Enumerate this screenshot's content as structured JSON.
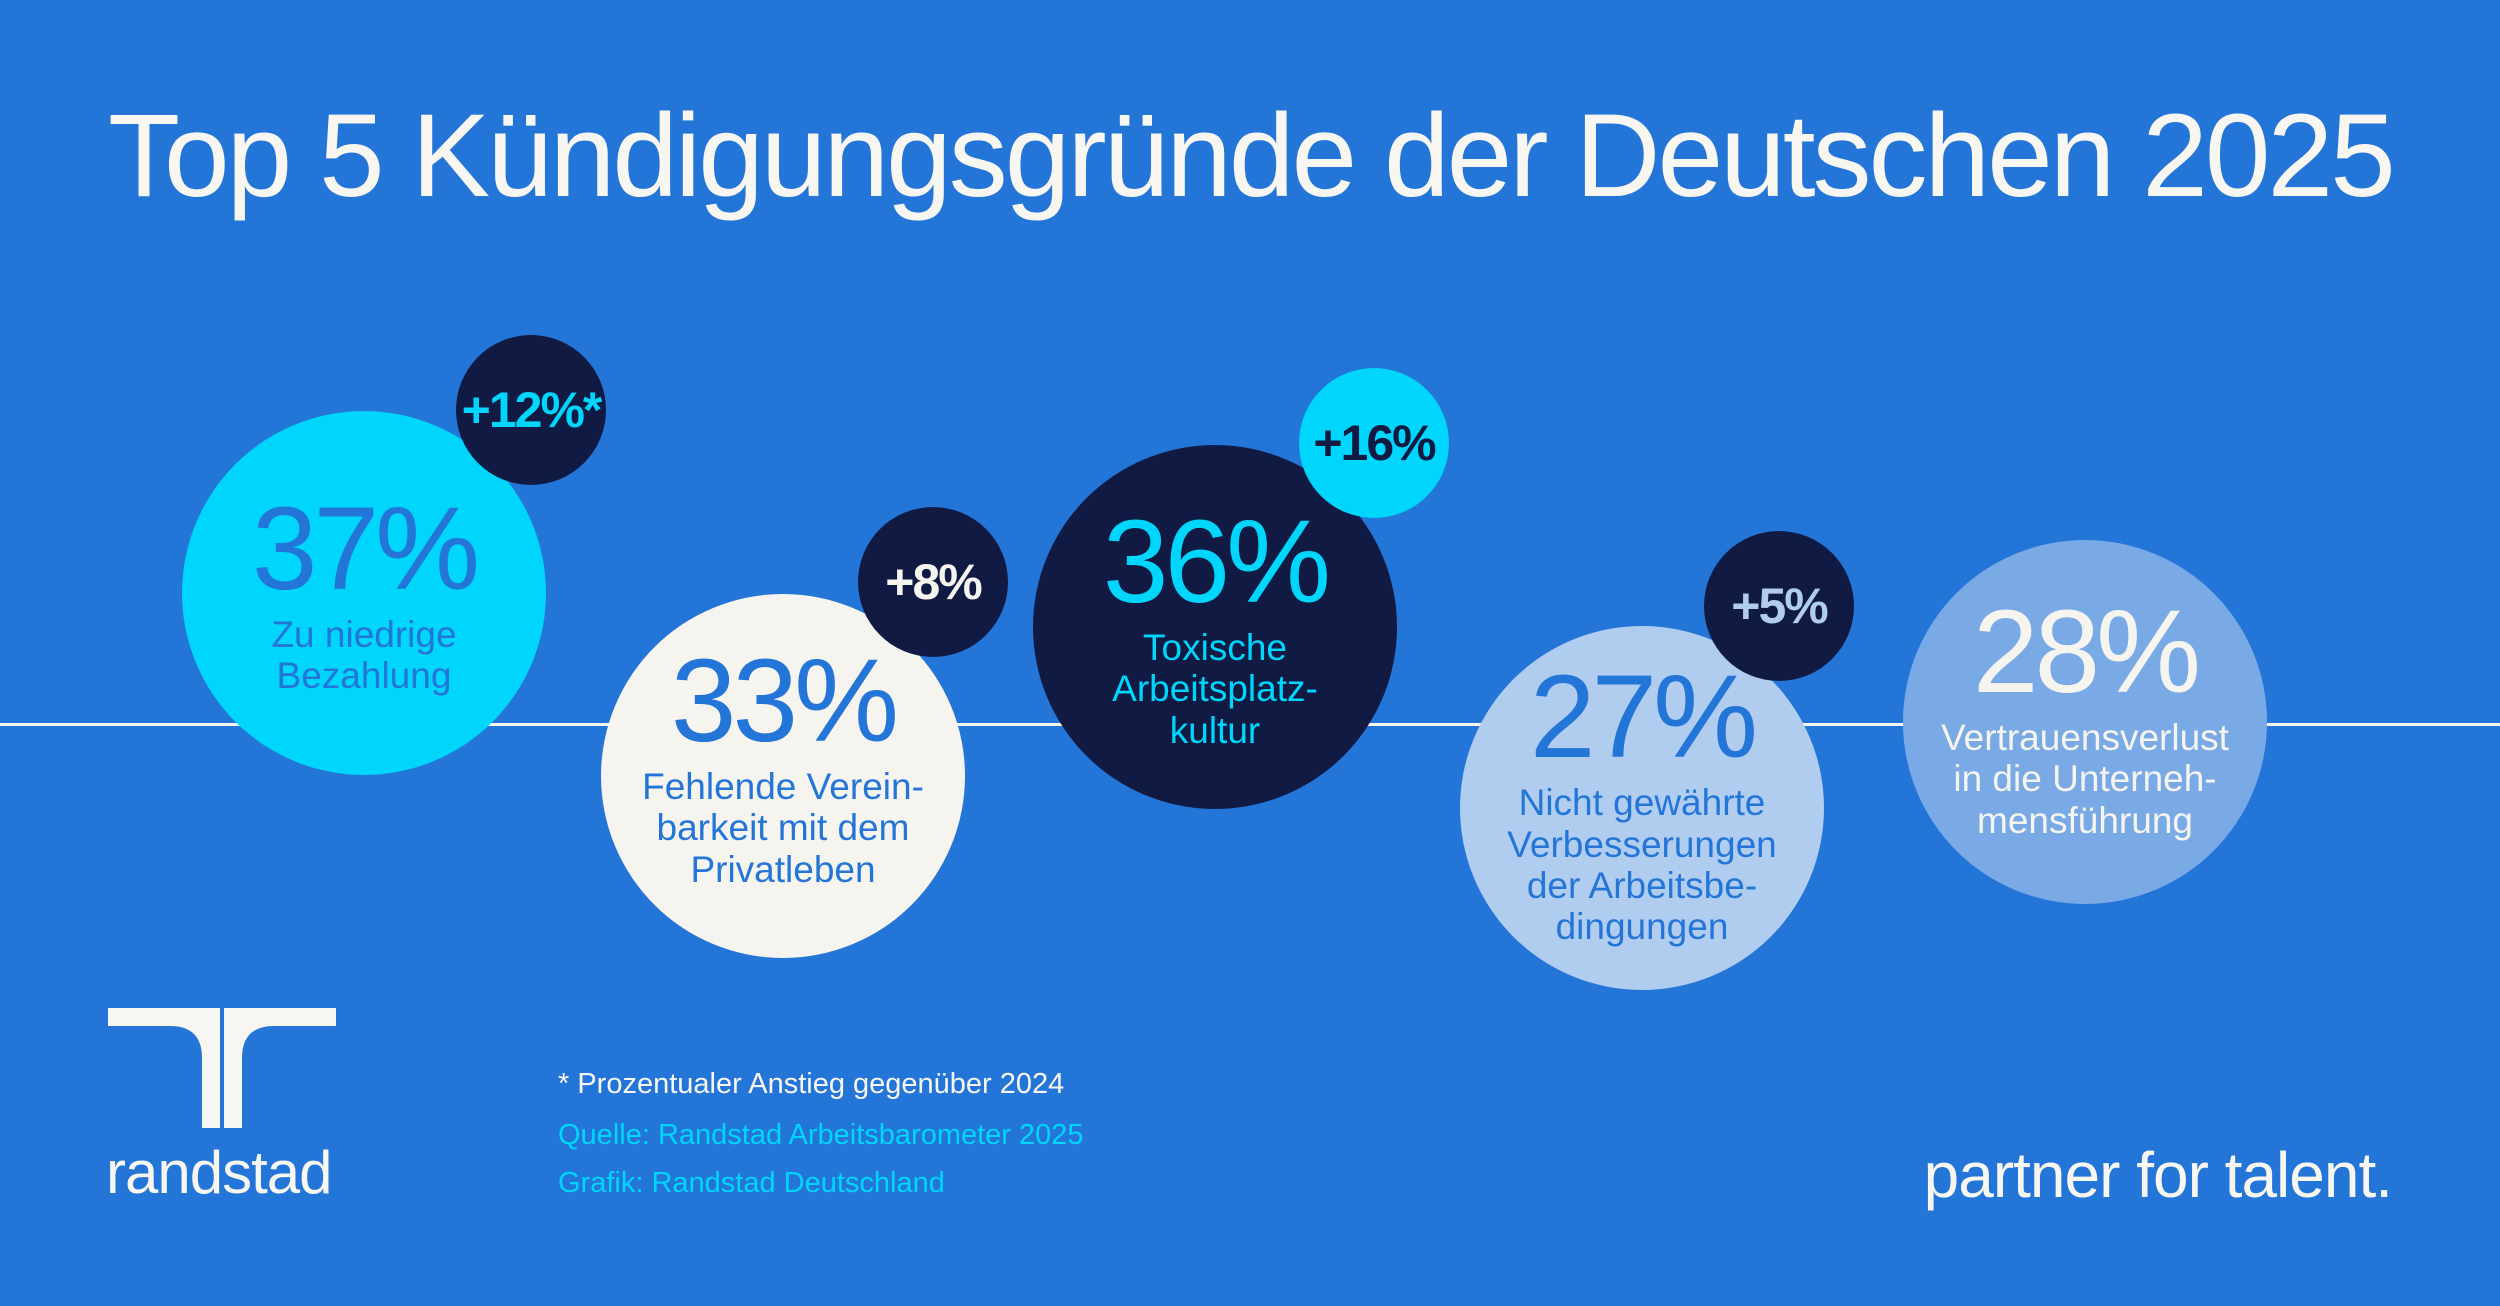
{
  "title": "Top 5 Kündigungsgründe der Deutschen 2025",
  "colors": {
    "background": "#2475d8",
    "cyan": "#00d5fc",
    "navy": "#101a42",
    "offwhite": "#f5f4ef",
    "light_blue": "#b0cdf0",
    "mid_blue": "#7aaae6",
    "text_blue": "#2475d8"
  },
  "reasons": [
    {
      "value": "37%",
      "label": "Zu niedrige\nBezahlung",
      "change": "+12%*"
    },
    {
      "value": "33%",
      "label": "Fehlende Verein-\nbarkeit mit dem\nPrivatleben",
      "change": "+8%"
    },
    {
      "value": "36%",
      "label": "Toxische\nArbeitsplatz-\nkultur",
      "change": "+16%"
    },
    {
      "value": "27%",
      "label": "Nicht gewährte\nVerbesserungen\nder Arbeitsbe-\ndingungen",
      "change": "+5%"
    },
    {
      "value": "28%",
      "label": "Vertrauensverlust\nin die Unterneh-\nmensführung"
    }
  ],
  "footnote": "* Prozentualer Anstieg gegenüber 2024",
  "source": "Quelle: Randstad Arbeitsbarometer 2025",
  "credit": "Grafik: Randstad Deutschland",
  "brand": {
    "logo_text": "randstad",
    "tagline": "partner for talent."
  }
}
